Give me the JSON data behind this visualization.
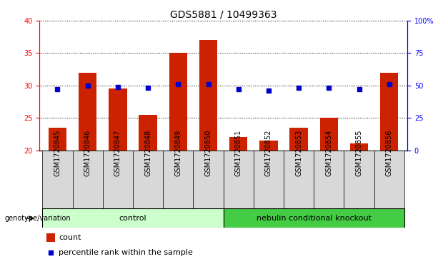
{
  "title": "GDS5881 / 10499363",
  "samples": [
    "GSM1720845",
    "GSM1720846",
    "GSM1720847",
    "GSM1720848",
    "GSM1720849",
    "GSM1720850",
    "GSM1720851",
    "GSM1720852",
    "GSM1720853",
    "GSM1720854",
    "GSM1720855",
    "GSM1720856"
  ],
  "bar_values": [
    23.5,
    32.0,
    29.5,
    25.5,
    35.0,
    37.0,
    22.0,
    21.5,
    23.5,
    25.0,
    21.0,
    32.0
  ],
  "percentile_values": [
    47,
    50,
    49,
    48,
    51,
    51,
    47,
    46,
    48,
    48,
    47,
    51
  ],
  "bar_color": "#cc2200",
  "dot_color": "#0000cc",
  "ylim_left": [
    20,
    40
  ],
  "ylim_right": [
    0,
    100
  ],
  "yticks_left": [
    20,
    25,
    30,
    35,
    40
  ],
  "yticks_right": [
    0,
    25,
    50,
    75,
    100
  ],
  "tick_bg_color": "#d8d8d8",
  "groups": [
    {
      "label": "control",
      "start": 0,
      "end": 5,
      "color": "#ccffcc"
    },
    {
      "label": "nebulin conditional knockout",
      "start": 6,
      "end": 11,
      "color": "#44cc44"
    }
  ],
  "group_row_label": "genotype/variation",
  "legend_count_label": "count",
  "legend_percentile_label": "percentile rank within the sample",
  "title_fontsize": 10,
  "tick_label_fontsize": 7,
  "group_label_fontsize": 8
}
